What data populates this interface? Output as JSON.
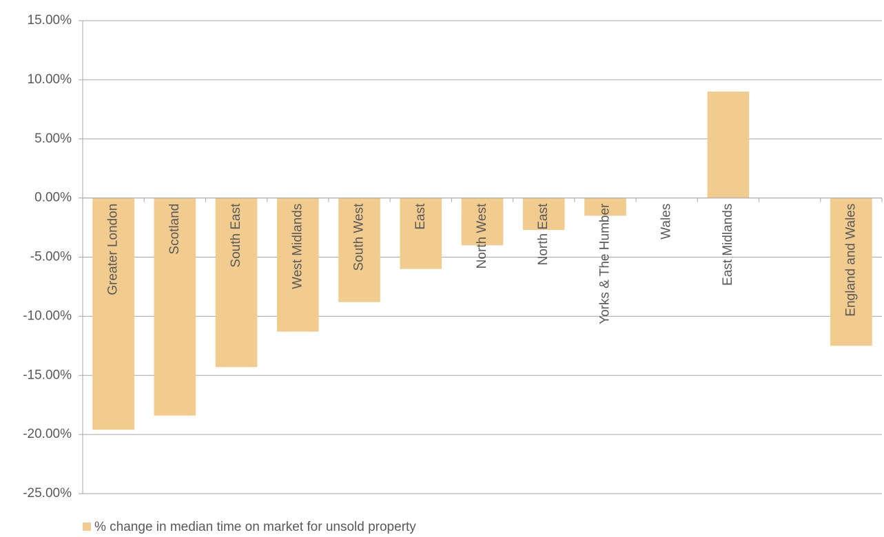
{
  "chart_data": {
    "type": "bar",
    "categories": [
      "Greater London",
      "Scotland",
      "South East",
      "West Midlands",
      "South West",
      "East",
      "North West",
      "North East",
      "Yorks & The Humber",
      "Wales",
      "East Midlands",
      null,
      "England and Wales"
    ],
    "series": [
      {
        "name": "% change in median time on market for unsold property",
        "color": "#f2cc8f",
        "values": [
          -19.6,
          -18.4,
          -14.3,
          -11.3,
          -8.8,
          -6.0,
          -4.0,
          -2.7,
          -1.5,
          0,
          9.0,
          null,
          -12.5
        ]
      }
    ],
    "ylim": [
      -25,
      15
    ],
    "yticks": [
      {
        "value": -25,
        "label": "-25.00%"
      },
      {
        "value": -20,
        "label": "-20.00%"
      },
      {
        "value": -15,
        "label": "-15.00%"
      },
      {
        "value": -10,
        "label": "-10.00%"
      },
      {
        "value": -5,
        "label": "-5.00%"
      },
      {
        "value": 0,
        "label": "0.00%"
      },
      {
        "value": 5,
        "label": "5.00%"
      },
      {
        "value": 10,
        "label": "10.00%"
      },
      {
        "value": 15,
        "label": "15.00%"
      }
    ],
    "grid": true,
    "legend": "bottom-left"
  }
}
